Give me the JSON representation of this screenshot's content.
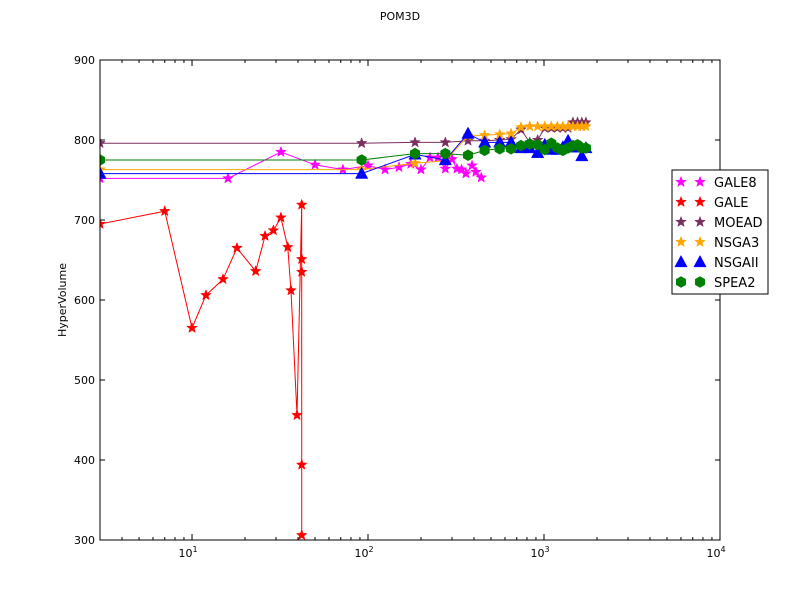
{
  "chart_data": {
    "type": "line",
    "title": "POM3D",
    "xlabel": "",
    "ylabel": "HyperVolume",
    "xscale": "log",
    "xlim": [
      3,
      10000
    ],
    "ylim": [
      300,
      900
    ],
    "yticks": [
      300,
      400,
      500,
      600,
      700,
      800,
      900
    ],
    "xticks": [
      10,
      100,
      1000,
      10000
    ],
    "xtick_labels": [
      {
        "base": "10",
        "exp": "1"
      },
      {
        "base": "10",
        "exp": "2"
      },
      {
        "base": "10",
        "exp": "3"
      },
      {
        "base": "10",
        "exp": "4"
      }
    ],
    "grid": false,
    "legend_position": "right",
    "series": [
      {
        "name": "GALE8",
        "color": "#ff00ff",
        "marker": "star",
        "points": [
          [
            3,
            752
          ],
          [
            16,
            752
          ],
          [
            32,
            785
          ],
          [
            50,
            769
          ],
          [
            72,
            763
          ],
          [
            100,
            768
          ],
          [
            125,
            763
          ],
          [
            150,
            766
          ],
          [
            175,
            770
          ],
          [
            200,
            763
          ],
          [
            225,
            778
          ],
          [
            250,
            778
          ],
          [
            275,
            764
          ],
          [
            300,
            776
          ],
          [
            320,
            764
          ],
          [
            340,
            763
          ],
          [
            360,
            758
          ],
          [
            390,
            768
          ],
          [
            410,
            760
          ],
          [
            440,
            753
          ]
        ]
      },
      {
        "name": "GALE",
        "color": "#ff0000",
        "marker": "star",
        "points": [
          [
            3,
            695
          ],
          [
            7,
            711
          ],
          [
            10,
            565
          ],
          [
            12,
            606
          ],
          [
            15,
            626
          ],
          [
            18,
            665
          ],
          [
            23,
            636
          ],
          [
            26,
            680
          ],
          [
            29,
            687
          ],
          [
            32,
            703
          ],
          [
            35,
            666
          ],
          [
            36.5,
            612
          ],
          [
            39.5,
            456
          ],
          [
            42,
            719
          ],
          [
            42,
            651
          ],
          [
            42,
            635
          ],
          [
            42,
            394
          ],
          [
            42,
            306
          ]
        ]
      },
      {
        "name": "MOEAD",
        "color": "#7b2f5f",
        "marker": "star",
        "points": [
          [
            3,
            796
          ],
          [
            92,
            796
          ],
          [
            185,
            797
          ],
          [
            275,
            797
          ],
          [
            370,
            799
          ],
          [
            460,
            799
          ],
          [
            560,
            800
          ],
          [
            650,
            801
          ],
          [
            740,
            813
          ],
          [
            830,
            797
          ],
          [
            920,
            800
          ],
          [
            1010,
            815
          ],
          [
            1100,
            815
          ],
          [
            1190,
            815
          ],
          [
            1280,
            815
          ],
          [
            1370,
            815
          ],
          [
            1460,
            822
          ],
          [
            1550,
            822
          ],
          [
            1640,
            822
          ],
          [
            1730,
            822
          ]
        ]
      },
      {
        "name": "NSGA3",
        "color": "#ffa500",
        "marker": "star",
        "points": [
          [
            3,
            763
          ],
          [
            92,
            763
          ],
          [
            185,
            771
          ],
          [
            275,
            774
          ],
          [
            370,
            805
          ],
          [
            460,
            806
          ],
          [
            560,
            807
          ],
          [
            650,
            808
          ],
          [
            740,
            816
          ],
          [
            830,
            817
          ],
          [
            920,
            817
          ],
          [
            1010,
            817
          ],
          [
            1100,
            817
          ],
          [
            1190,
            817
          ],
          [
            1280,
            817
          ],
          [
            1370,
            817
          ],
          [
            1460,
            817
          ],
          [
            1550,
            817
          ],
          [
            1640,
            817
          ],
          [
            1730,
            817
          ]
        ]
      },
      {
        "name": "NSGAII",
        "color": "#0000ff",
        "marker": "triangle",
        "points": [
          [
            3,
            758
          ],
          [
            92,
            758
          ],
          [
            185,
            782
          ],
          [
            275,
            775
          ],
          [
            370,
            808
          ],
          [
            460,
            797
          ],
          [
            560,
            797
          ],
          [
            650,
            797
          ],
          [
            740,
            790
          ],
          [
            830,
            790
          ],
          [
            920,
            784
          ],
          [
            1010,
            794
          ],
          [
            1100,
            788
          ],
          [
            1190,
            788
          ],
          [
            1280,
            791
          ],
          [
            1370,
            799
          ],
          [
            1460,
            791
          ],
          [
            1550,
            791
          ],
          [
            1640,
            780
          ],
          [
            1730,
            790
          ]
        ]
      },
      {
        "name": "SPEA2",
        "color": "#008000",
        "marker": "hexagon",
        "points": [
          [
            3,
            775
          ],
          [
            92,
            775
          ],
          [
            185,
            783
          ],
          [
            275,
            783
          ],
          [
            370,
            781
          ],
          [
            460,
            787
          ],
          [
            560,
            789
          ],
          [
            650,
            789
          ],
          [
            740,
            793
          ],
          [
            830,
            795
          ],
          [
            920,
            794
          ],
          [
            1010,
            788
          ],
          [
            1100,
            796
          ],
          [
            1190,
            790
          ],
          [
            1280,
            787
          ],
          [
            1370,
            790
          ],
          [
            1460,
            793
          ],
          [
            1550,
            794
          ],
          [
            1640,
            790
          ],
          [
            1730,
            790
          ]
        ]
      }
    ]
  }
}
